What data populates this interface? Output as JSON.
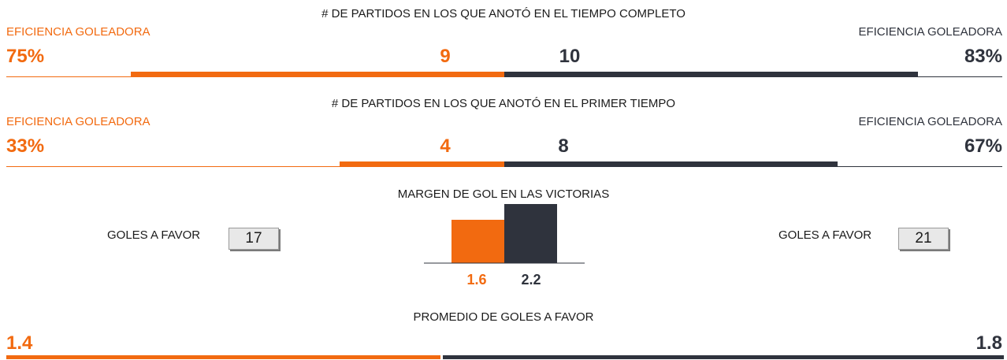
{
  "chart_data": [
    {
      "type": "bar",
      "title": "# DE PARTIDOS EN LOS QUE ANOTÓ EN EL TIEMPO COMPLETO",
      "orientation": "horizontal-diverging",
      "values": [
        9,
        10
      ],
      "efficiency_label_left": "EFICIENCIA GOLEADORA",
      "efficiency_label_right": "EFICIENCIA GOLEADORA",
      "efficiency": [
        "75%",
        "83%"
      ],
      "efficiency_fraction": [
        0.75,
        0.83
      ],
      "colors": [
        "#f26a10",
        "#2f333d"
      ]
    },
    {
      "type": "bar",
      "title": "# DE PARTIDOS EN LOS QUE ANOTÓ EN EL PRIMER TIEMPO",
      "orientation": "horizontal-diverging",
      "values": [
        4,
        8
      ],
      "efficiency_label_left": "EFICIENCIA GOLEADORA",
      "efficiency_label_right": "EFICIENCIA GOLEADORA",
      "efficiency": [
        "33%",
        "67%"
      ],
      "efficiency_fraction": [
        0.33,
        0.67
      ],
      "colors": [
        "#f26a10",
        "#2f333d"
      ]
    },
    {
      "type": "bar",
      "title": "MARGEN DE GOL EN LAS VICTORIAS",
      "values": [
        1.6,
        2.2
      ],
      "value_labels": [
        "1.6",
        "2.2"
      ],
      "ylim": [
        0,
        2.2
      ],
      "colors": [
        "#f26a10",
        "#2f333d"
      ]
    },
    {
      "type": "bar",
      "title": "PROMEDIO DE GOLES A FAVOR",
      "orientation": "horizontal-split",
      "values": [
        1.4,
        1.8
      ],
      "value_labels": [
        "1.4",
        "1.8"
      ],
      "colors": [
        "#f26a10",
        "#2f333d"
      ]
    }
  ],
  "goles_a_favor": {
    "label_left": "GOLES A FAVOR",
    "label_right": "GOLES A FAVOR",
    "left_value": "17",
    "right_value": "21"
  }
}
